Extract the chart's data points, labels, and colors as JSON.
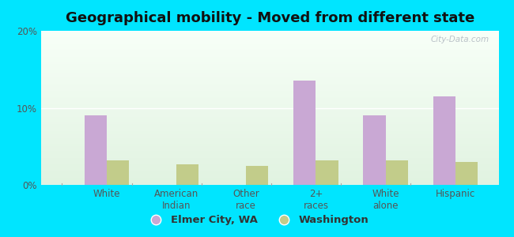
{
  "title": "Geographical mobility - Moved from different state",
  "categories": [
    "White",
    "American\nIndian",
    "Other\nrace",
    "2+\nraces",
    "White\nalone",
    "Hispanic"
  ],
  "elmer_values": [
    9.0,
    0.0,
    0.0,
    13.5,
    9.0,
    11.5
  ],
  "washington_values": [
    3.2,
    2.7,
    2.5,
    3.2,
    3.2,
    3.0
  ],
  "elmer_color": "#c9a8d4",
  "washington_color": "#c2cc8a",
  "background_outer": "#00e5ff",
  "ylim": [
    0,
    20
  ],
  "yticks": [
    0,
    10,
    20
  ],
  "ytick_labels": [
    "0%",
    "10%",
    "20%"
  ],
  "legend_elmer": "Elmer City, WA",
  "legend_washington": "Washington",
  "bar_width": 0.32,
  "title_fontsize": 13,
  "tick_fontsize": 8.5,
  "legend_fontsize": 9.5,
  "watermark": "City-Data.com"
}
